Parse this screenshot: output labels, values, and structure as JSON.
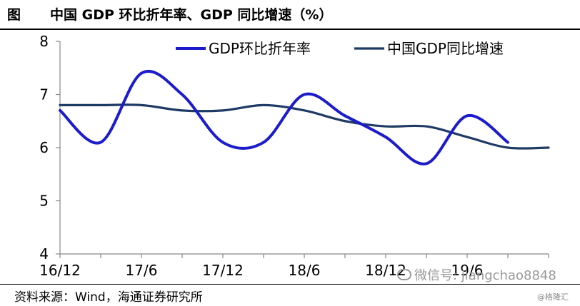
{
  "header": {
    "figure_label": "图",
    "title": "中国 GDP 环比折年率、GDP 同比增速（%）"
  },
  "footer": {
    "source": "资料来源：Wind，海通证券研究所"
  },
  "watermark": {
    "text": "微信号: jiangchao8848",
    "sub": "@格隆汇",
    "icon": "wechat-icon"
  },
  "colors": {
    "series_1": "#1c1ccc",
    "series_2": "#1f3a64",
    "axis": "#888888"
  },
  "chart_data": {
    "type": "line",
    "ylim": [
      4,
      8
    ],
    "yticks": [
      4,
      5,
      6,
      7,
      8
    ],
    "xtick_labels": [
      "16/12",
      "17/6",
      "17/12",
      "18/6",
      "18/12",
      "19/6"
    ],
    "x_range": [
      "2016-12",
      "2019-12"
    ],
    "grid": false,
    "legend_position": "top",
    "series": [
      {
        "name": "GDP环比折年率",
        "color": "#1c1ccc",
        "x": [
          "2016-12",
          "2017-03",
          "2017-06",
          "2017-09",
          "2017-12",
          "2018-03",
          "2018-06",
          "2018-09",
          "2018-12",
          "2019-03",
          "2019-06",
          "2019-09"
        ],
        "values": [
          6.7,
          6.1,
          7.4,
          7.0,
          6.1,
          6.1,
          7.0,
          6.6,
          6.2,
          5.7,
          6.6,
          6.1
        ]
      },
      {
        "name": "中国GDP同比增速",
        "color": "#1f3a64",
        "x": [
          "2016-12",
          "2017-03",
          "2017-06",
          "2017-09",
          "2017-12",
          "2018-03",
          "2018-06",
          "2018-09",
          "2018-12",
          "2019-03",
          "2019-06",
          "2019-09",
          "2019-12"
        ],
        "values": [
          6.8,
          6.8,
          6.8,
          6.7,
          6.7,
          6.8,
          6.7,
          6.5,
          6.4,
          6.4,
          6.2,
          6.0,
          6.0
        ]
      }
    ]
  }
}
